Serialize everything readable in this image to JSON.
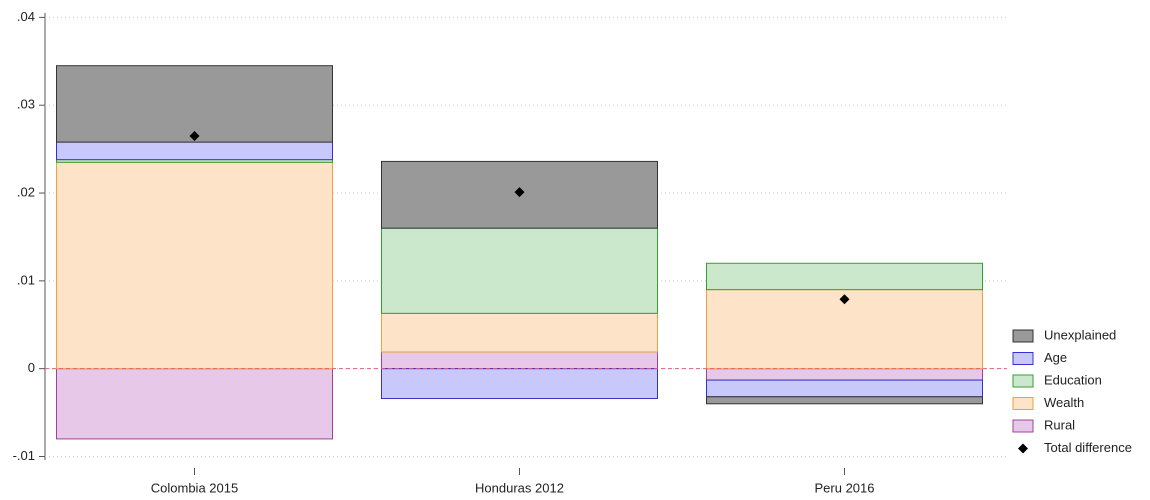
{
  "chart_data": {
    "type": "bar",
    "stacked": true,
    "categories": [
      "Colombia 2015",
      "Honduras 2012",
      "Peru 2016"
    ],
    "series": [
      {
        "name": "Unexplained",
        "color": "#999999",
        "edgecolor": "#333333",
        "values": [
          0.0087,
          0.0076,
          -0.0008
        ]
      },
      {
        "name": "Age",
        "color": "#c8c8fa",
        "edgecolor": "#3333cc",
        "values": [
          0.002,
          -0.0034,
          -0.0019
        ]
      },
      {
        "name": "Education",
        "color": "#cce8cc",
        "edgecolor": "#33a033",
        "values": [
          0.0003,
          0.0097,
          0.003
        ]
      },
      {
        "name": "Wealth",
        "color": "#fde3c8",
        "edgecolor": "#f0a040",
        "values": [
          0.0235,
          0.0044,
          0.009
        ]
      },
      {
        "name": "Rural",
        "color": "#e8c8e8",
        "edgecolor": "#a040a0",
        "values": [
          -0.008,
          0.0019,
          -0.0013
        ]
      }
    ],
    "total": {
      "name": "Total difference",
      "color": "#000000",
      "values": [
        0.0265,
        0.0201,
        0.0079
      ]
    },
    "reference_line": {
      "y": 0,
      "color": "#e06080"
    },
    "ylim": [
      -0.0104,
      0.0405
    ],
    "yticks": [
      {
        "value": -0.01,
        "label": "-.01"
      },
      0,
      {
        "value": 0.01,
        "label": ".01"
      },
      {
        "value": 0.02,
        "label": ".02"
      },
      {
        "value": 0.03,
        "label": ".03"
      },
      {
        "value": 0.04,
        "label": ".04"
      }
    ],
    "grid": true,
    "legend": "right"
  }
}
